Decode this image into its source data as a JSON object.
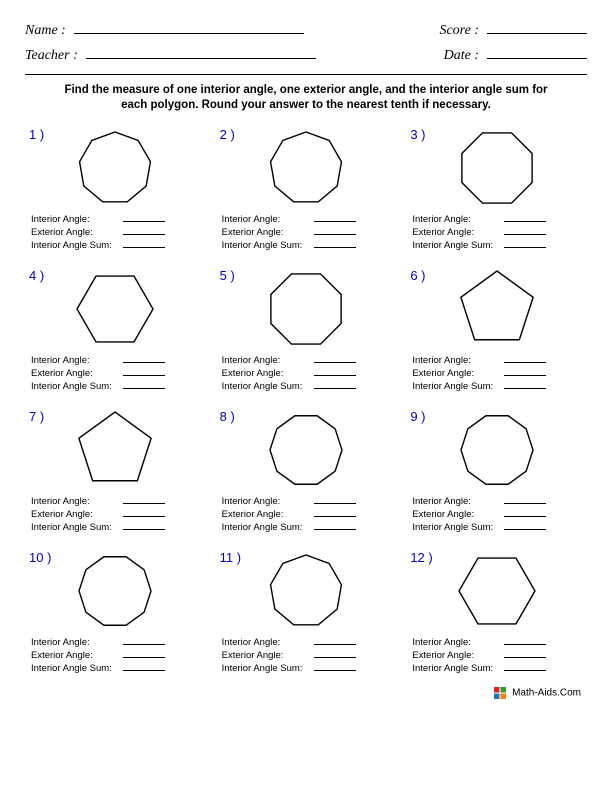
{
  "header": {
    "name_label": "Name :",
    "teacher_label": "Teacher :",
    "score_label": "Score :",
    "date_label": "Date :"
  },
  "instructions": "Find the measure of one interior angle, one exterior angle, and the interior angle sum for each polygon. Round your answer to the nearest tenth if necessary.",
  "answer_labels": {
    "interior": "Interior Angle:",
    "exterior": "Exterior Angle:",
    "sum": "Interior Angle Sum:"
  },
  "polygon_stroke": "#000000",
  "polygon_fill": "none",
  "polygon_stroke_width": 1.4,
  "number_color": "#0000cc",
  "problems": [
    {
      "num": "1 )",
      "sides": 9,
      "radius": 36,
      "rotation": -90
    },
    {
      "num": "2 )",
      "sides": 9,
      "radius": 36,
      "rotation": -90
    },
    {
      "num": "3 )",
      "sides": 8,
      "radius": 38,
      "rotation": 22.5
    },
    {
      "num": "4 )",
      "sides": 6,
      "radius": 38,
      "rotation": 0
    },
    {
      "num": "5 )",
      "sides": 8,
      "radius": 38,
      "rotation": 22.5
    },
    {
      "num": "6 )",
      "sides": 5,
      "radius": 38,
      "rotation": -90
    },
    {
      "num": "7 )",
      "sides": 5,
      "radius": 38,
      "rotation": -90
    },
    {
      "num": "8 )",
      "sides": 10,
      "radius": 36,
      "rotation": 0
    },
    {
      "num": "9 )",
      "sides": 10,
      "radius": 36,
      "rotation": 0
    },
    {
      "num": "10 )",
      "sides": 10,
      "radius": 36,
      "rotation": 0
    },
    {
      "num": "11 )",
      "sides": 9,
      "radius": 36,
      "rotation": -90
    },
    {
      "num": "12 )",
      "sides": 6,
      "radius": 38,
      "rotation": 0
    }
  ],
  "footer": {
    "text": "Math-Aids.Com"
  }
}
